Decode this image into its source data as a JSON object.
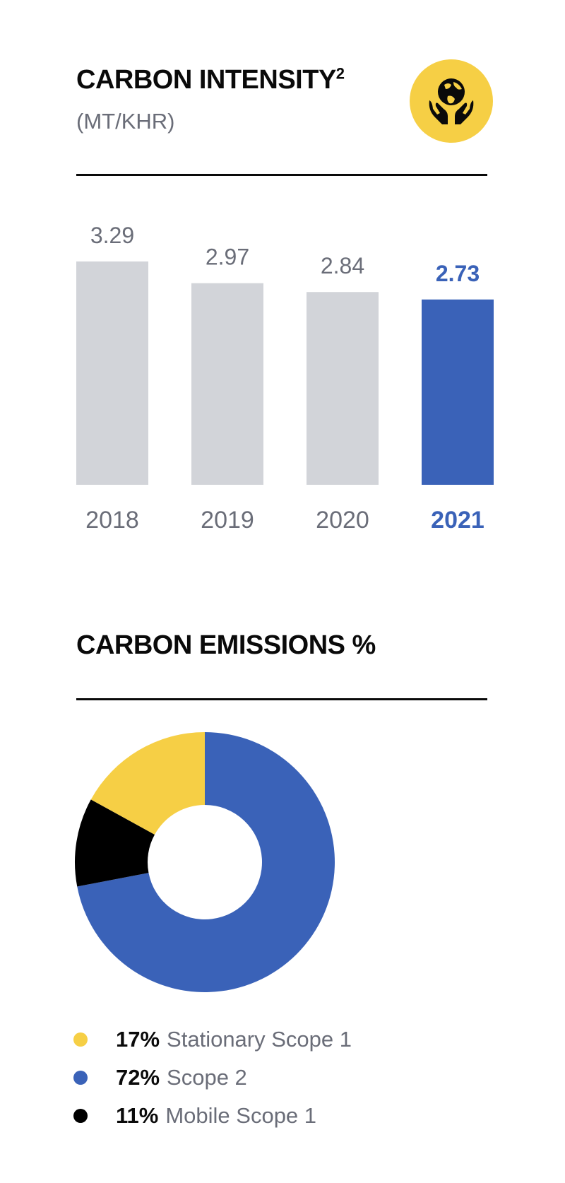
{
  "intensity": {
    "title": "CARBON INTENSITY",
    "title_sup": "2",
    "subtitle": "(MT/KHR)",
    "icon": "globe-in-hands-icon"
  },
  "emissions": {
    "title": "CARBON EMISSIONS %"
  },
  "colors": {
    "bar_default": "#d2d4d9",
    "highlight": "#3a62b8",
    "label_gray": "#6a6d78",
    "yellow": "#f6cf45",
    "black": "#000000"
  },
  "chart_data": [
    {
      "type": "bar",
      "categories": [
        "2018",
        "2019",
        "2020",
        "2021"
      ],
      "values": [
        3.29,
        2.97,
        2.84,
        2.73
      ],
      "value_labels": [
        "3.29",
        "2.97",
        "2.84",
        "2.73"
      ],
      "highlight_index": 3,
      "title": "CARBON INTENSITY",
      "ylabel": "(MT/KHR)",
      "ylim": [
        0,
        3.29
      ],
      "grid": false
    },
    {
      "type": "pie",
      "donut": true,
      "slices": [
        {
          "pct_label": "72%",
          "value": 72,
          "label": "Scope 2",
          "color": "#3a62b8"
        },
        {
          "pct_label": "11%",
          "value": 11,
          "label": "Mobile Scope 1",
          "color": "#000000"
        },
        {
          "pct_label": "17%",
          "value": 17,
          "label": "Stationary Scope 1",
          "color": "#f6cf45"
        }
      ],
      "legend": [
        {
          "pct_label": "17%",
          "label": "Stationary Scope 1",
          "color": "#f6cf45"
        },
        {
          "pct_label": "72%",
          "label": "Scope 2",
          "color": "#3a62b8"
        },
        {
          "pct_label": "11%",
          "label": "Mobile Scope 1",
          "color": "#000000"
        }
      ],
      "title": "CARBON EMISSIONS %",
      "legend_position": "bottom"
    }
  ]
}
